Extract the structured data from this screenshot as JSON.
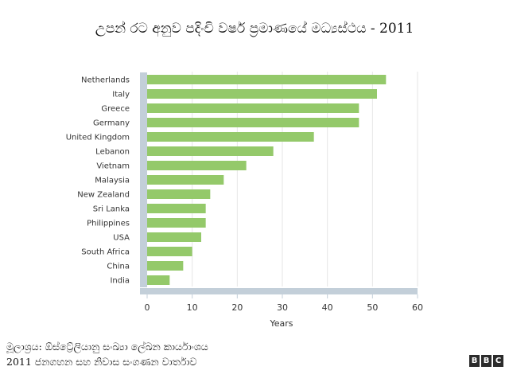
{
  "chart_data": {
    "type": "bar",
    "orientation": "horizontal",
    "title": "උපන් රට අනුව පදිංචි වර්ෂ ප්‍රමාණයේ මධ්‍යස්ථය - 2011",
    "xlabel": "Years",
    "ylabel": "",
    "xlim": [
      0,
      60
    ],
    "xticks": [
      0,
      10,
      20,
      30,
      40,
      50,
      60
    ],
    "grid": "vertical",
    "categories": [
      "Netherlands",
      "Italy",
      "Greece",
      "Germany",
      "United Kingdom",
      "Lebanon",
      "Vietnam",
      "Malaysia",
      "New Zealand",
      "Sri Lanka",
      "Philippines",
      "USA",
      "South Africa",
      "China",
      "India"
    ],
    "values": [
      53,
      51,
      47,
      47,
      37,
      28,
      22,
      17,
      14,
      13,
      13,
      12,
      10,
      8,
      5
    ],
    "bar_color": "#94c96a",
    "axis_color": "#c3cfd9"
  },
  "footer": {
    "source_line1": "මූලාශ්‍රය: ඕස්ට්‍රේලියානු සංඛ්‍යා ලේඛන කාර්යාංශය",
    "source_line2": "2011 ජනගහන සහ නිවාස සංගණන වාර්තාව",
    "logo_letters": [
      "B",
      "B",
      "C"
    ]
  }
}
